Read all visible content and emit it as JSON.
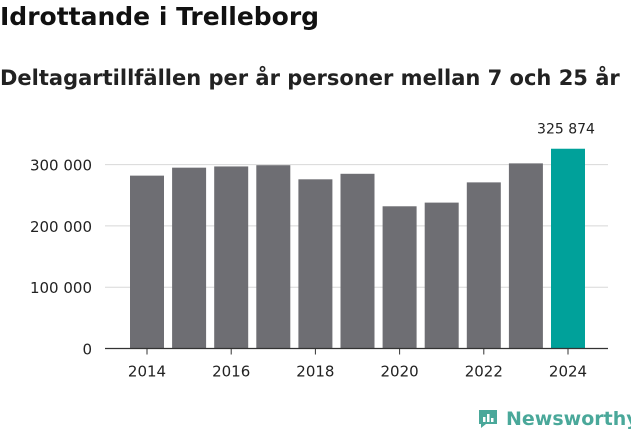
{
  "page": {
    "title": "Idrottande i Trelleborg",
    "subtitle": "Deltagartillfällen per år personer mellan 7 och 25 år"
  },
  "chart_data": {
    "type": "bar",
    "x": [
      2014,
      2015,
      2016,
      2017,
      2018,
      2019,
      2020,
      2021,
      2022,
      2023,
      2024
    ],
    "values": [
      282000,
      295000,
      297000,
      299000,
      276000,
      285000,
      232000,
      238000,
      271000,
      302000,
      325874
    ],
    "highlight_index": 10,
    "highlight_label": "325 874",
    "ylim": [
      0,
      330000
    ],
    "yticks": [
      0,
      100000,
      200000,
      300000
    ],
    "ytick_labels": [
      "0",
      "100 000",
      "200 000",
      "300 000"
    ],
    "xticks": [
      2014,
      2016,
      2018,
      2020,
      2022,
      2024
    ],
    "xtick_labels": [
      "2014",
      "2016",
      "2018",
      "2020",
      "2022",
      "2024"
    ],
    "xlabel": "",
    "ylabel": "",
    "colors": {
      "bar": "#6e6e73",
      "highlight": "#00a19a",
      "grid": "#d8d8d8"
    }
  },
  "brand": {
    "name": "Newsworthy",
    "icon": "newsworthy-logo-icon",
    "color": "#4aa89a"
  }
}
